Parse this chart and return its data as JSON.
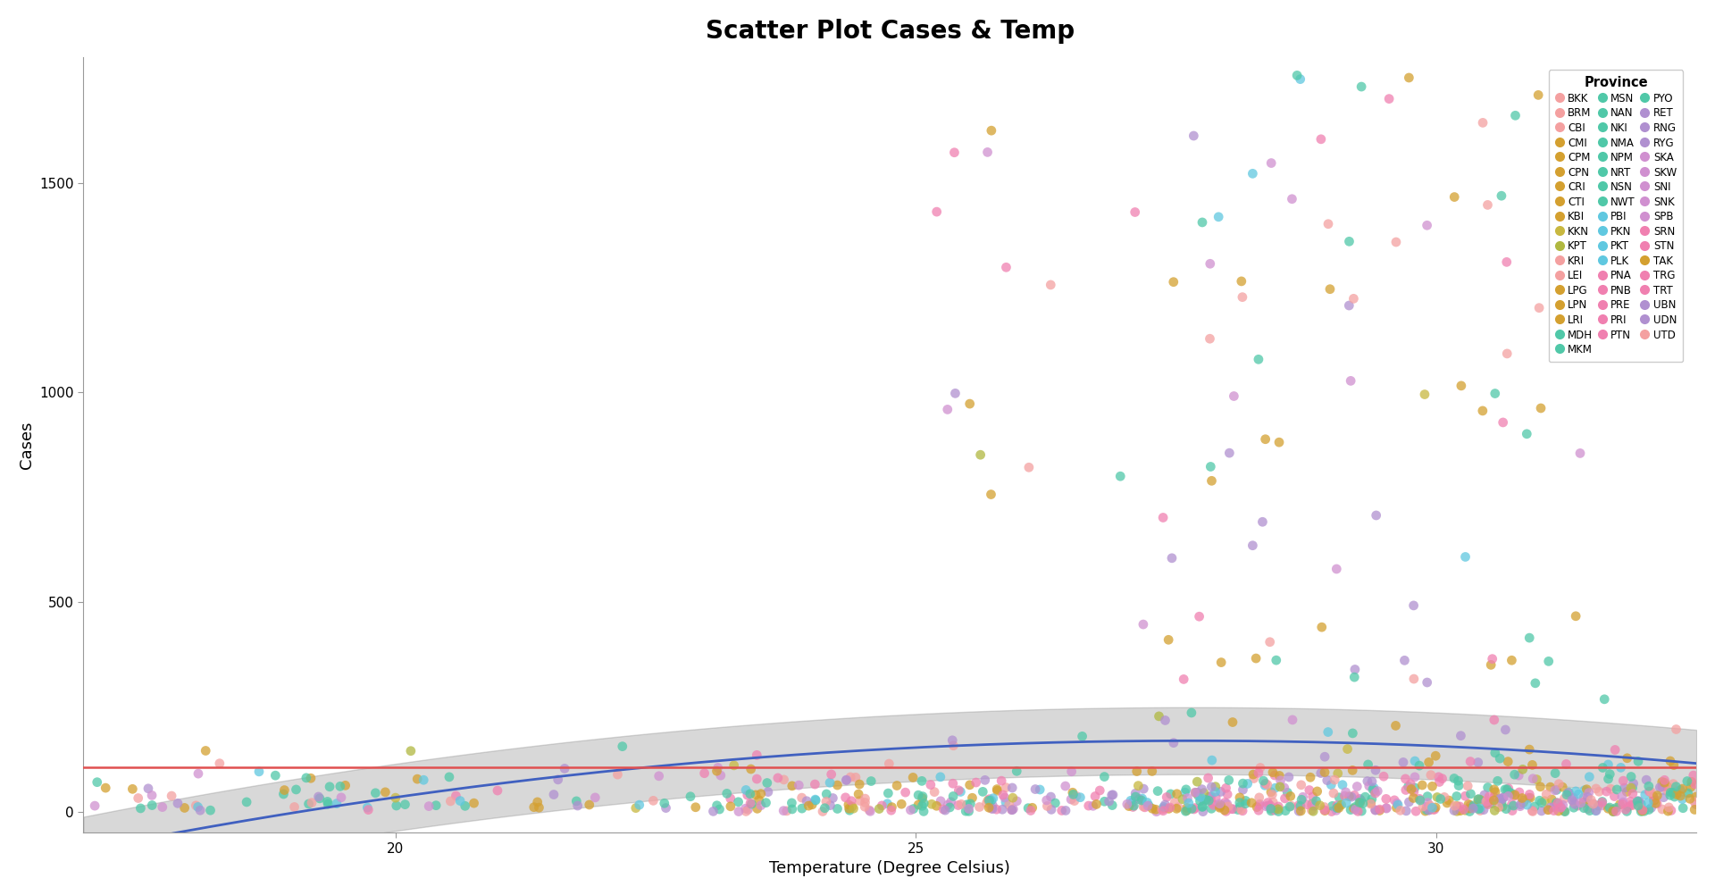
{
  "title": "Scatter Plot Cases & Temp",
  "xlabel": "Temperature (Degree Celsius)",
  "ylabel": "Cases",
  "xlim": [
    17.0,
    32.5
  ],
  "ylim": [
    -50,
    1800
  ],
  "yticks": [
    0,
    500,
    1000,
    1500
  ],
  "xticks": [
    20,
    25,
    30
  ],
  "hline_y": 105,
  "hline_color": "#E05050",
  "bg_color": "#FFFFFF",
  "title_fontsize": 20,
  "axis_label_fontsize": 13,
  "legend_title": "Province",
  "province_colors": {
    "BKK": "#F4A0A0",
    "BRM": "#F4A0A0",
    "CBI": "#F4A0A0",
    "CMI": "#D4A030",
    "CPM": "#D4A030",
    "CPN": "#D4A030",
    "CRI": "#D4A030",
    "CTI": "#D4A030",
    "KBI": "#D4A030",
    "KKN": "#C8B840",
    "KPT": "#B0B840",
    "KRI": "#F4A0A0",
    "LEI": "#F4A0A0",
    "LPG": "#D4A030",
    "LPN": "#D4A030",
    "LRI": "#D4A030",
    "MDH": "#50C8A8",
    "MKM": "#50C8A8",
    "MSN": "#50C8A8",
    "NAN": "#50C8A8",
    "NKI": "#50C8A8",
    "NMA": "#50C8A8",
    "NPM": "#50C8A8",
    "NRT": "#50C8A8",
    "NSN": "#50C8A8",
    "NWT": "#50C8A8",
    "PBI": "#60C8E0",
    "PKN": "#60C8E0",
    "PKT": "#60C8E0",
    "PLK": "#60C8E0",
    "PNA": "#F080B0",
    "PNB": "#F080B0",
    "PRE": "#F080B0",
    "PRI": "#F080B0",
    "PTN": "#F080B0",
    "PYO": "#50C8A8",
    "RET": "#B090D0",
    "RNG": "#B090D0",
    "RYG": "#B090D0",
    "SKA": "#D090D0",
    "SKW": "#D090D0",
    "SNI": "#D090D0",
    "SNK": "#D090D0",
    "SPB": "#D090D0",
    "SRN": "#F080B0",
    "STN": "#F080B0",
    "TAK": "#D4A030",
    "TRG": "#F080B0",
    "TRT": "#F080B0",
    "UBN": "#B090D0",
    "UDN": "#B090D0",
    "UTD": "#F4A0A0"
  },
  "legend_col1": [
    "BKK",
    "BRM",
    "CBI",
    "CMI",
    "CPM",
    "CPN",
    "CRI",
    "CTI",
    "KBI",
    "KKN",
    "KPT",
    "KRI",
    "LEI",
    "LPG",
    "LPN",
    "LRI",
    "MDH",
    "MKM"
  ],
  "legend_col2": [
    "MSN",
    "NAN",
    "NKI",
    "NMA",
    "NPM",
    "NRT",
    "NSN",
    "NWT",
    "PBI",
    "PKN",
    "PKT",
    "PLK",
    "PNA",
    "PNB",
    "PRE",
    "PRI",
    "PTN",
    "PYO"
  ],
  "legend_col3": [
    "RET",
    "RNG",
    "RYG",
    "SKA",
    "SKW",
    "SNI",
    "SNK",
    "SPB",
    "SRN",
    "STN",
    "TAK",
    "TRG",
    "TRT",
    "UBN",
    "UDN",
    "UTD"
  ],
  "regression_color": "#4060C0",
  "regression_lw": 2.0,
  "point_size": 60,
  "point_alpha": 0.75
}
